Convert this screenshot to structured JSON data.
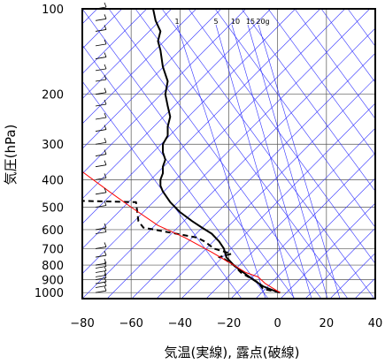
{
  "chart_data": {
    "type": "line",
    "title": "",
    "xlabel": "気温(実線), 露点(破線)",
    "ylabel": "気圧(hPa)",
    "xlim": [
      -80,
      40
    ],
    "ylim": [
      1050,
      100
    ],
    "y_scale": "log",
    "x_ticks": [
      "−80",
      "−60",
      "−40",
      "−20",
      "0",
      "20",
      "40"
    ],
    "x_tick_values": [
      -80,
      -60,
      -40,
      -20,
      0,
      20,
      40
    ],
    "y_ticks": [
      "100",
      "200",
      "300",
      "400",
      "500",
      "600",
      "700",
      "800",
      "900",
      "1000"
    ],
    "y_tick_values": [
      100,
      200,
      300,
      400,
      500,
      600,
      700,
      800,
      900,
      1000
    ],
    "mixing_ratio_labels": [
      "1",
      "5",
      "10",
      "15",
      "20g"
    ],
    "grid": true,
    "series": [
      {
        "style": "solid",
        "color": "#000000",
        "points": [
          [
            1,
            1000
          ],
          [
            -2,
            980
          ],
          [
            -6,
            950
          ],
          [
            -10,
            900
          ],
          [
            -14,
            850
          ],
          [
            -18,
            800
          ],
          [
            -21,
            750
          ],
          [
            -22,
            700
          ],
          [
            -24,
            660
          ],
          [
            -27,
            620
          ],
          [
            -31,
            590
          ],
          [
            -35,
            560
          ],
          [
            -40,
            520
          ],
          [
            -44,
            480
          ],
          [
            -47,
            440
          ],
          [
            -48,
            420
          ],
          [
            -48,
            400
          ],
          [
            -47,
            380
          ],
          [
            -47,
            360
          ],
          [
            -46,
            340
          ],
          [
            -47,
            320
          ],
          [
            -47,
            300
          ],
          [
            -45,
            280
          ],
          [
            -45,
            260
          ],
          [
            -44,
            240
          ],
          [
            -45,
            220
          ],
          [
            -46,
            200
          ],
          [
            -45,
            180
          ],
          [
            -47,
            160
          ],
          [
            -48,
            140
          ],
          [
            -49,
            130
          ],
          [
            -48,
            120
          ],
          [
            -50,
            110
          ],
          [
            -51,
            100
          ]
        ]
      },
      {
        "style": "dashed",
        "color": "#000000",
        "points": [
          [
            1,
            1000
          ],
          [
            -6,
            970
          ],
          [
            -8,
            920
          ],
          [
            -12,
            880
          ],
          [
            -15,
            850
          ],
          [
            -18,
            800
          ],
          [
            -22,
            760
          ],
          [
            -24,
            750
          ],
          [
            -19,
            730
          ],
          [
            -26,
            700
          ],
          [
            -30,
            660
          ],
          [
            -33,
            640
          ],
          [
            -55,
            590
          ],
          [
            -57,
            560
          ],
          [
            -58,
            480
          ],
          [
            -80,
            475
          ]
        ]
      },
      {
        "style": "solid",
        "color": "#ff0000",
        "points": [
          [
            1,
            1000
          ],
          [
            -5,
            930
          ],
          [
            -8,
            880
          ],
          [
            -13,
            850
          ],
          [
            -18,
            800
          ],
          [
            -27,
            720
          ],
          [
            -38,
            640
          ],
          [
            -49,
            580
          ],
          [
            -60,
            500
          ],
          [
            -69,
            440
          ],
          [
            -80,
            375
          ]
        ]
      }
    ]
  }
}
